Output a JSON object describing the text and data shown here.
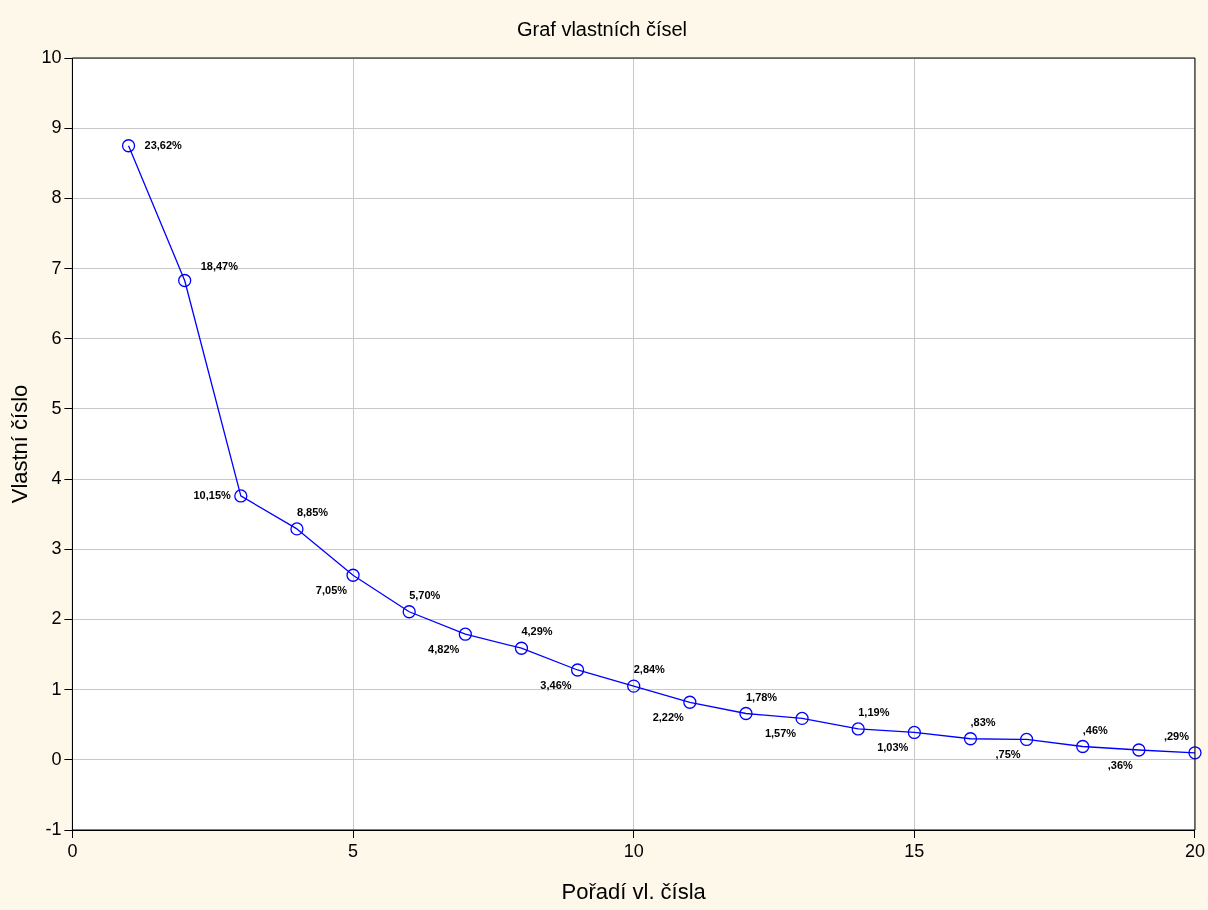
{
  "chart_data": {
    "type": "line",
    "title": "Graf vlastních čísel",
    "xlabel": "Pořadí vl. čísla",
    "ylabel": "Vlastní číslo",
    "x": [
      1,
      2,
      3,
      4,
      5,
      6,
      7,
      8,
      9,
      10,
      11,
      12,
      13,
      14,
      15,
      16,
      17,
      18,
      19,
      20
    ],
    "series": [
      {
        "color": "#0000ff",
        "values": [
          8.75,
          6.83,
          3.76,
          3.29,
          2.63,
          2.11,
          1.79,
          1.59,
          1.28,
          1.05,
          0.82,
          0.66,
          0.59,
          0.44,
          0.39,
          0.3,
          0.29,
          0.19,
          0.14,
          0.1
        ]
      }
    ],
    "annotations": [
      {
        "text": "23,62%",
        "x": 1,
        "y": 8.75
      },
      {
        "text": "18,47%",
        "x": 2,
        "y": 6.83
      },
      {
        "text": "10,15%",
        "x": 3,
        "y": 3.76
      },
      {
        "text": "8,85%",
        "x": 4,
        "y": 3.29
      },
      {
        "text": "7,05%",
        "x": 5,
        "y": 2.63
      },
      {
        "text": "5,70%",
        "x": 6,
        "y": 2.11
      },
      {
        "text": "4,82%",
        "x": 7,
        "y": 1.79
      },
      {
        "text": "4,29%",
        "x": 8,
        "y": 1.59
      },
      {
        "text": "3,46%",
        "x": 9,
        "y": 1.28
      },
      {
        "text": "2,84%",
        "x": 10,
        "y": 1.05
      },
      {
        "text": "2,22%",
        "x": 11,
        "y": 0.82
      },
      {
        "text": "1,78%",
        "x": 12,
        "y": 0.66
      },
      {
        "text": "1,57%",
        "x": 13,
        "y": 0.59
      },
      {
        "text": "1,19%",
        "x": 14,
        "y": 0.44
      },
      {
        "text": "1,03%",
        "x": 15,
        "y": 0.39
      },
      {
        "text": ",83%",
        "x": 16,
        "y": 0.3
      },
      {
        "text": ",75%",
        "x": 17,
        "y": 0.29
      },
      {
        "text": ",46%",
        "x": 18,
        "y": 0.19
      },
      {
        "text": ",36%",
        "x": 19,
        "y": 0.14
      },
      {
        "text": ",29%",
        "x": 20,
        "y": 0.1
      }
    ],
    "xlim": [
      0,
      20
    ],
    "xticks": [
      0,
      5,
      10,
      15,
      20
    ],
    "ylim": [
      -1,
      10
    ],
    "yticks": [
      -1,
      0,
      1,
      2,
      3,
      4,
      5,
      6,
      7,
      8,
      9,
      10
    ],
    "grid": true,
    "legend": false,
    "marker": "circle",
    "line_style": "solid"
  }
}
